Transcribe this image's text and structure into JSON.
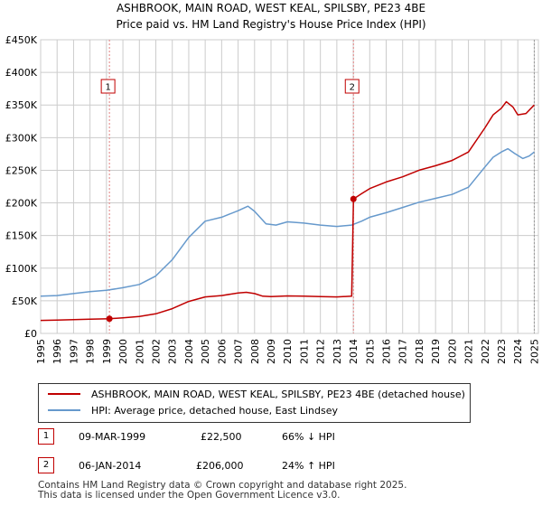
{
  "chart_data": {
    "type": "line",
    "title": "ASHBROOK, MAIN ROAD, WEST KEAL, SPILSBY, PE23 4BE",
    "subtitle": "Price paid vs. HM Land Registry's House Price Index (HPI)",
    "xlabel": "",
    "ylabel": "",
    "xlim": [
      1995,
      2025.25
    ],
    "ylim": [
      0,
      450000
    ],
    "x_ticks": [
      1995,
      1996,
      1997,
      1998,
      1999,
      2000,
      2001,
      2002,
      2003,
      2004,
      2005,
      2006,
      2007,
      2008,
      2009,
      2010,
      2011,
      2012,
      2013,
      2014,
      2015,
      2016,
      2017,
      2018,
      2019,
      2020,
      2021,
      2022,
      2023,
      2024,
      2025
    ],
    "y_ticks": [
      {
        "value": 0,
        "label": "£0"
      },
      {
        "value": 50000,
        "label": "£50K"
      },
      {
        "value": 100000,
        "label": "£100K"
      },
      {
        "value": 150000,
        "label": "£150K"
      },
      {
        "value": 200000,
        "label": "£200K"
      },
      {
        "value": 250000,
        "label": "£250K"
      },
      {
        "value": 300000,
        "label": "£300K"
      },
      {
        "value": 350000,
        "label": "£350K"
      },
      {
        "value": 400000,
        "label": "£400K"
      },
      {
        "value": 450000,
        "label": "£450K"
      }
    ],
    "grid": true,
    "series": [
      {
        "name": "ASHBROOK, MAIN ROAD, WEST KEAL, SPILSBY, PE23 4BE (detached house)",
        "color": "#c00000",
        "points": [
          [
            1995.0,
            20000
          ],
          [
            1996.0,
            20400
          ],
          [
            1997.0,
            21000
          ],
          [
            1998.0,
            21800
          ],
          [
            1999.18,
            22500
          ],
          [
            2000.0,
            24000
          ],
          [
            2001.0,
            26000
          ],
          [
            2002.0,
            30000
          ],
          [
            2003.0,
            38000
          ],
          [
            2004.0,
            49000
          ],
          [
            2005.0,
            56000
          ],
          [
            2006.0,
            58000
          ],
          [
            2007.0,
            62000
          ],
          [
            2007.5,
            63000
          ],
          [
            2008.0,
            61000
          ],
          [
            2008.5,
            57000
          ],
          [
            2009.0,
            56500
          ],
          [
            2010.0,
            57500
          ],
          [
            2011.0,
            57000
          ],
          [
            2012.0,
            56500
          ],
          [
            2013.0,
            56000
          ],
          [
            2013.9,
            57000
          ],
          [
            2014.01,
            206000
          ],
          [
            2014.5,
            214000
          ],
          [
            2015.0,
            222000
          ],
          [
            2016.0,
            232000
          ],
          [
            2017.0,
            240000
          ],
          [
            2018.0,
            250000
          ],
          [
            2019.0,
            257000
          ],
          [
            2020.0,
            265000
          ],
          [
            2021.0,
            278000
          ],
          [
            2022.0,
            315000
          ],
          [
            2022.5,
            335000
          ],
          [
            2023.0,
            345000
          ],
          [
            2023.3,
            355000
          ],
          [
            2023.7,
            347000
          ],
          [
            2024.0,
            335000
          ],
          [
            2024.5,
            337000
          ],
          [
            2025.0,
            350000
          ]
        ]
      },
      {
        "name": "HPI: Average price, detached house, East Lindsey",
        "color": "#6699cc",
        "points": [
          [
            1995.0,
            57000
          ],
          [
            1996.0,
            58000
          ],
          [
            1997.0,
            61000
          ],
          [
            1998.0,
            64000
          ],
          [
            1999.0,
            66000
          ],
          [
            2000.0,
            70000
          ],
          [
            2001.0,
            75000
          ],
          [
            2002.0,
            88000
          ],
          [
            2003.0,
            113000
          ],
          [
            2004.0,
            147000
          ],
          [
            2005.0,
            172000
          ],
          [
            2006.0,
            178000
          ],
          [
            2007.0,
            188000
          ],
          [
            2007.6,
            195000
          ],
          [
            2008.0,
            187000
          ],
          [
            2008.7,
            168000
          ],
          [
            2009.3,
            166000
          ],
          [
            2010.0,
            171000
          ],
          [
            2011.0,
            169000
          ],
          [
            2012.0,
            166000
          ],
          [
            2013.0,
            164000
          ],
          [
            2013.9,
            166000
          ],
          [
            2014.5,
            172000
          ],
          [
            2015.0,
            178000
          ],
          [
            2016.0,
            185000
          ],
          [
            2017.0,
            193000
          ],
          [
            2018.0,
            201000
          ],
          [
            2019.0,
            207000
          ],
          [
            2020.0,
            213000
          ],
          [
            2021.0,
            224000
          ],
          [
            2022.0,
            255000
          ],
          [
            2022.5,
            270000
          ],
          [
            2023.0,
            278000
          ],
          [
            2023.4,
            283000
          ],
          [
            2023.8,
            276000
          ],
          [
            2024.3,
            268000
          ],
          [
            2024.7,
            272000
          ],
          [
            2025.0,
            278000
          ]
        ]
      }
    ],
    "sales": [
      {
        "id": "1",
        "x": 1999.18,
        "price": 22500
      },
      {
        "id": "2",
        "x": 2014.01,
        "price": 206000
      }
    ],
    "data_end": 2025.0
  },
  "legend": {
    "property_label": "ASHBROOK, MAIN ROAD, WEST KEAL, SPILSBY, PE23 4BE (detached house)",
    "hpi_label": "HPI: Average price, detached house, East Lindsey"
  },
  "sales_table": [
    {
      "id": "1",
      "date": "09-MAR-1999",
      "price": "£22,500",
      "hpi": "66% ↓ HPI"
    },
    {
      "id": "2",
      "date": "06-JAN-2014",
      "price": "£206,000",
      "hpi": "24% ↑ HPI"
    }
  ],
  "footer": {
    "line1": "Contains HM Land Registry data © Crown copyright and database right 2025.",
    "line2": "This data is licensed under the Open Government Licence v3.0."
  }
}
